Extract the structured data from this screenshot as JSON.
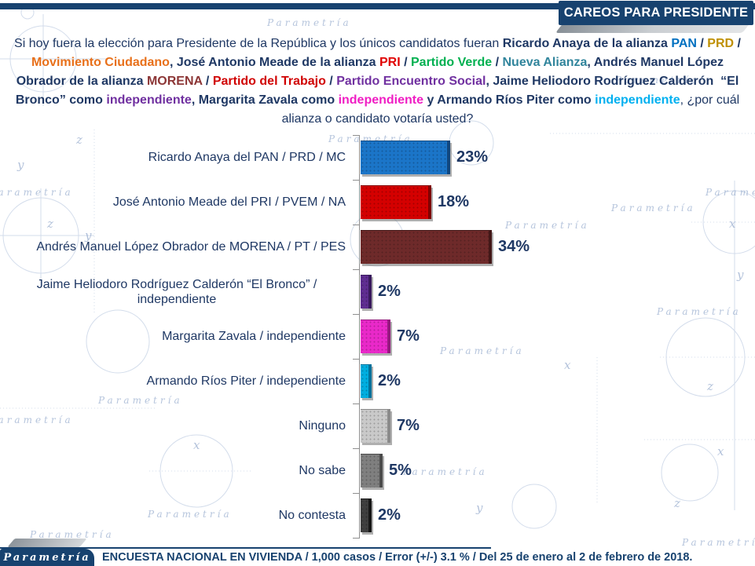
{
  "header": {
    "title": "CAREOS PARA PRESIDENTE"
  },
  "question": {
    "segments": [
      {
        "text": "Si hoy fuera la elección para Presidente de la República y los únicos candidatos fueran ",
        "color": "#1F3864",
        "bold": false
      },
      {
        "text": "Ricardo Anaya de la alianza ",
        "color": "#1F3864",
        "bold": true
      },
      {
        "text": "PAN",
        "color": "#0070C0",
        "bold": true
      },
      {
        "text": " / ",
        "color": "#1F3864",
        "bold": true
      },
      {
        "text": "PRD",
        "color": "#BF9000",
        "bold": true
      },
      {
        "text": " / ",
        "color": "#1F3864",
        "bold": true
      },
      {
        "text": "Movimiento Ciudadano",
        "color": "#E8701A",
        "bold": true
      },
      {
        "text": ", José Antonio Meade de la alianza ",
        "color": "#1F3864",
        "bold": true
      },
      {
        "text": "PRI",
        "color": "#E00000",
        "bold": true
      },
      {
        "text": " / ",
        "color": "#1F3864",
        "bold": true
      },
      {
        "text": "Partido Verde",
        "color": "#00B050",
        "bold": true
      },
      {
        "text": " / ",
        "color": "#1F3864",
        "bold": true
      },
      {
        "text": "Nueva Alianza",
        "color": "#31859C",
        "bold": true
      },
      {
        "text": ", Andrés Manuel López Obrador de la alianza ",
        "color": "#1F3864",
        "bold": true
      },
      {
        "text": "MORENA",
        "color": "#8C3636",
        "bold": true
      },
      {
        "text": " / ",
        "color": "#1F3864",
        "bold": true
      },
      {
        "text": "Partido del Trabajo",
        "color": "#D00000",
        "bold": true
      },
      {
        "text": " / ",
        "color": "#1F3864",
        "bold": true
      },
      {
        "text": "Partido Encuentro Social",
        "color": "#7030A0",
        "bold": true
      },
      {
        "text": ", Jaime Heliodoro Rodríguez Calderón  “El Bronco” como ",
        "color": "#1F3864",
        "bold": true
      },
      {
        "text": "independiente",
        "color": "#7030A0",
        "bold": true
      },
      {
        "text": ", Margarita Zavala como ",
        "color": "#1F3864",
        "bold": true
      },
      {
        "text": "independiente",
        "color": "#F01EC4",
        "bold": true
      },
      {
        "text": " y Armando Ríos Piter como ",
        "color": "#1F3864",
        "bold": true
      },
      {
        "text": "independiente",
        "color": "#00B0F0",
        "bold": true
      },
      {
        "text": ", ¿por cuál alianza o candidato votaría usted?",
        "color": "#1F3864",
        "bold": false
      }
    ]
  },
  "chart_data": {
    "type": "bar",
    "orientation": "horizontal",
    "title": "CAREOS PARA PRESIDENTE",
    "xlabel": "",
    "ylabel": "",
    "xlim": [
      0,
      40
    ],
    "grid": false,
    "legend": false,
    "categories": [
      "Ricardo Anaya del PAN / PRD / MC",
      "José Antonio Meade del PRI / PVEM / NA",
      "Andrés Manuel López Obrador de MORENA / PT / PES",
      "Jaime Heliodoro Rodríguez Calderón  “El Bronco” / independiente",
      "Margarita Zavala / independiente",
      "Armando Ríos Piter / independiente",
      "Ninguno",
      "No sabe",
      "No contesta"
    ],
    "values": [
      23,
      18,
      34,
      2,
      7,
      2,
      7,
      5,
      2
    ],
    "value_labels": [
      "23%",
      "18%",
      "34%",
      "2%",
      "7%",
      "2%",
      "7%",
      "5%",
      "2%"
    ],
    "bar_colors": [
      "#1B75C8",
      "#D40000",
      "#6E2A2A",
      "#5F2D91",
      "#E929C9",
      "#00AEE0",
      "#C9C9C9",
      "#7F7F7F",
      "#3F3F3F"
    ],
    "bar_edge_colors": [
      "#11477E",
      "#7E0000",
      "#421717",
      "#38195C",
      "#96187F",
      "#02719A",
      "#8A8A8A",
      "#4B4B4B",
      "#161616"
    ]
  },
  "footer": {
    "logo_text": "Parametría",
    "note": "ENCUESTA NACIONAL EN VIVIENDA / 1,000 casos / Error (+/-) 3.1 % / Del 25 de enero al 2 de febrero de 2018."
  },
  "watermark": {
    "text": "Parametría",
    "letters": [
      "x",
      "y",
      "z"
    ]
  },
  "colors": {
    "navy": "#17426F",
    "text_navy": "#1F3864",
    "watermark_blue": "#9DB2D4"
  }
}
